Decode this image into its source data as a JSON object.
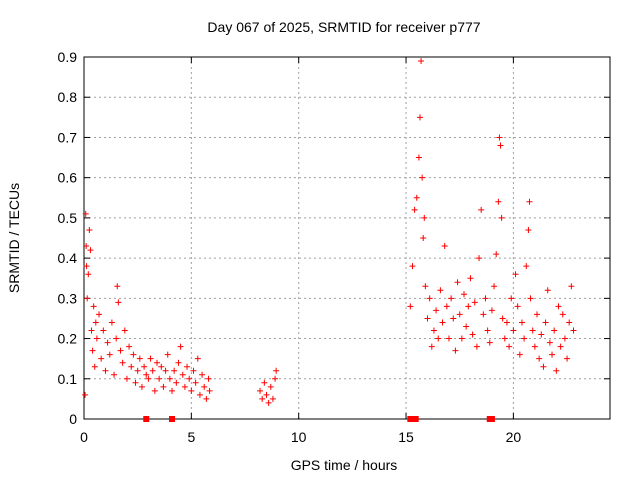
{
  "chart_data": {
    "type": "scatter",
    "title": "Day 067 of 2025, SRMTID for receiver p777",
    "xlabel": "GPS time / hours",
    "ylabel": "SRMTID / TECUs",
    "xlim": [
      0,
      24.5
    ],
    "ylim": [
      0,
      0.9
    ],
    "xticks": [
      0,
      5,
      10,
      15,
      20
    ],
    "yticks": [
      0,
      0.1,
      0.2,
      0.3,
      0.4,
      0.5,
      0.6,
      0.7,
      0.8,
      0.9
    ],
    "grid": true,
    "marker": "+",
    "color": "#ff0000",
    "series": [
      {
        "name": "SRMTID",
        "points": [
          [
            0.05,
            0.06
          ],
          [
            0.08,
            0.51
          ],
          [
            0.1,
            0.43
          ],
          [
            0.12,
            0.38
          ],
          [
            0.15,
            0.3
          ],
          [
            0.2,
            0.36
          ],
          [
            0.25,
            0.47
          ],
          [
            0.3,
            0.42
          ],
          [
            0.35,
            0.22
          ],
          [
            0.4,
            0.17
          ],
          [
            0.45,
            0.28
          ],
          [
            0.5,
            0.13
          ],
          [
            0.55,
            0.24
          ],
          [
            0.6,
            0.2
          ],
          [
            0.7,
            0.26
          ],
          [
            0.8,
            0.15
          ],
          [
            0.9,
            0.22
          ],
          [
            1.0,
            0.12
          ],
          [
            1.1,
            0.19
          ],
          [
            1.2,
            0.16
          ],
          [
            1.3,
            0.24
          ],
          [
            1.4,
            0.11
          ],
          [
            1.5,
            0.2
          ],
          [
            1.55,
            0.33
          ],
          [
            1.6,
            0.29
          ],
          [
            1.7,
            0.17
          ],
          [
            1.8,
            0.14
          ],
          [
            1.9,
            0.22
          ],
          [
            2.0,
            0.1
          ],
          [
            2.1,
            0.18
          ],
          [
            2.2,
            0.13
          ],
          [
            2.3,
            0.16
          ],
          [
            2.4,
            0.09
          ],
          [
            2.5,
            0.12
          ],
          [
            2.6,
            0.15
          ],
          [
            2.7,
            0.08
          ],
          [
            2.8,
            0.13
          ],
          [
            2.9,
            0.11
          ],
          [
            3.0,
            0.1
          ],
          [
            3.1,
            0.15
          ],
          [
            3.2,
            0.12
          ],
          [
            3.3,
            0.07
          ],
          [
            3.4,
            0.14
          ],
          [
            3.5,
            0.1
          ],
          [
            3.6,
            0.13
          ],
          [
            3.7,
            0.08
          ],
          [
            3.8,
            0.12
          ],
          [
            3.9,
            0.16
          ],
          [
            4.0,
            0.1
          ],
          [
            4.1,
            0.07
          ],
          [
            4.2,
            0.12
          ],
          [
            4.3,
            0.09
          ],
          [
            4.4,
            0.14
          ],
          [
            4.5,
            0.18
          ],
          [
            4.6,
            0.11
          ],
          [
            4.7,
            0.08
          ],
          [
            4.8,
            0.13
          ],
          [
            4.9,
            0.1
          ],
          [
            5.0,
            0.07
          ],
          [
            5.1,
            0.12
          ],
          [
            5.2,
            0.09
          ],
          [
            5.3,
            0.15
          ],
          [
            5.4,
            0.06
          ],
          [
            5.5,
            0.11
          ],
          [
            5.6,
            0.08
          ],
          [
            5.7,
            0.05
          ],
          [
            5.8,
            0.1
          ],
          [
            5.85,
            0.07
          ],
          [
            8.2,
            0.07
          ],
          [
            8.3,
            0.05
          ],
          [
            8.4,
            0.09
          ],
          [
            8.5,
            0.06
          ],
          [
            8.6,
            0.04
          ],
          [
            8.7,
            0.08
          ],
          [
            8.8,
            0.05
          ],
          [
            8.9,
            0.1
          ],
          [
            8.95,
            0.12
          ],
          [
            15.2,
            0.28
          ],
          [
            15.3,
            0.38
          ],
          [
            15.4,
            0.52
          ],
          [
            15.5,
            0.55
          ],
          [
            15.6,
            0.65
          ],
          [
            15.65,
            0.75
          ],
          [
            15.7,
            0.89
          ],
          [
            15.75,
            0.6
          ],
          [
            15.8,
            0.45
          ],
          [
            15.85,
            0.5
          ],
          [
            15.9,
            0.33
          ],
          [
            16.0,
            0.25
          ],
          [
            16.1,
            0.3
          ],
          [
            16.2,
            0.18
          ],
          [
            16.3,
            0.22
          ],
          [
            16.4,
            0.27
          ],
          [
            16.5,
            0.2
          ],
          [
            16.6,
            0.32
          ],
          [
            16.7,
            0.24
          ],
          [
            16.8,
            0.43
          ],
          [
            16.9,
            0.28
          ],
          [
            17.0,
            0.2
          ],
          [
            17.1,
            0.3
          ],
          [
            17.2,
            0.25
          ],
          [
            17.3,
            0.17
          ],
          [
            17.4,
            0.34
          ],
          [
            17.5,
            0.26
          ],
          [
            17.6,
            0.2
          ],
          [
            17.7,
            0.31
          ],
          [
            17.8,
            0.23
          ],
          [
            17.9,
            0.28
          ],
          [
            18.0,
            0.35
          ],
          [
            18.1,
            0.21
          ],
          [
            18.2,
            0.29
          ],
          [
            18.3,
            0.18
          ],
          [
            18.4,
            0.4
          ],
          [
            18.5,
            0.52
          ],
          [
            18.6,
            0.26
          ],
          [
            18.7,
            0.3
          ],
          [
            18.8,
            0.22
          ],
          [
            18.9,
            0.19
          ],
          [
            19.0,
            0.27
          ],
          [
            19.1,
            0.33
          ],
          [
            19.2,
            0.41
          ],
          [
            19.3,
            0.54
          ],
          [
            19.35,
            0.7
          ],
          [
            19.4,
            0.68
          ],
          [
            19.45,
            0.5
          ],
          [
            19.5,
            0.25
          ],
          [
            19.6,
            0.2
          ],
          [
            19.7,
            0.24
          ],
          [
            19.8,
            0.18
          ],
          [
            19.9,
            0.3
          ],
          [
            20.0,
            0.22
          ],
          [
            20.1,
            0.36
          ],
          [
            20.2,
            0.28
          ],
          [
            20.3,
            0.16
          ],
          [
            20.4,
            0.24
          ],
          [
            20.5,
            0.2
          ],
          [
            20.6,
            0.38
          ],
          [
            20.7,
            0.47
          ],
          [
            20.75,
            0.54
          ],
          [
            20.8,
            0.3
          ],
          [
            20.9,
            0.22
          ],
          [
            21.0,
            0.18
          ],
          [
            21.1,
            0.26
          ],
          [
            21.2,
            0.15
          ],
          [
            21.3,
            0.21
          ],
          [
            21.4,
            0.13
          ],
          [
            21.5,
            0.24
          ],
          [
            21.6,
            0.32
          ],
          [
            21.7,
            0.19
          ],
          [
            21.8,
            0.16
          ],
          [
            21.9,
            0.22
          ],
          [
            22.0,
            0.12
          ],
          [
            22.1,
            0.28
          ],
          [
            22.2,
            0.18
          ],
          [
            22.3,
            0.26
          ],
          [
            22.4,
            0.2
          ],
          [
            22.5,
            0.15
          ],
          [
            22.6,
            0.24
          ],
          [
            22.7,
            0.33
          ],
          [
            22.8,
            0.22
          ]
        ]
      }
    ],
    "zero_markers_x": [
      2.9,
      4.1,
      15.2,
      15.35,
      15.45,
      18.9,
      19.0
    ]
  }
}
